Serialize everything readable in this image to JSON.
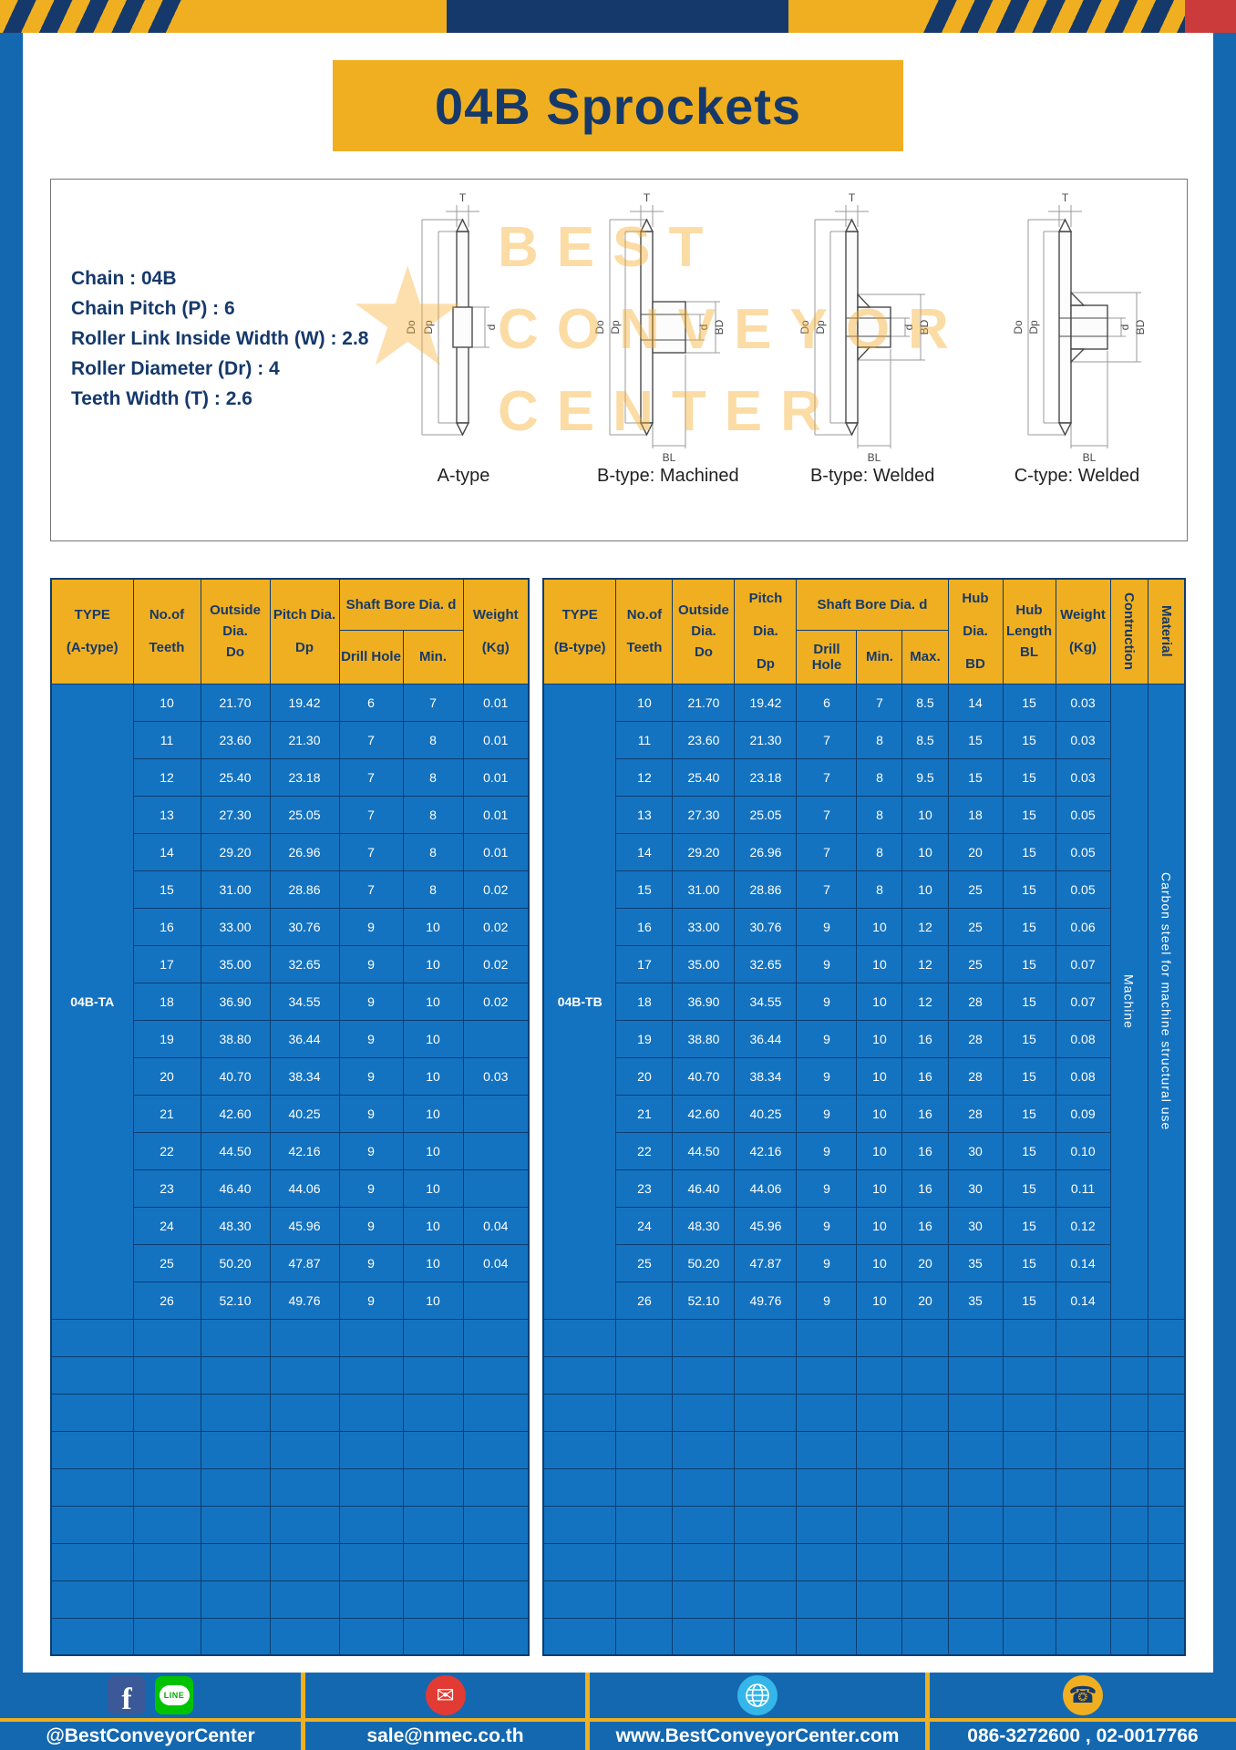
{
  "page": {
    "title": "04B Sprockets"
  },
  "specs": {
    "lines": [
      "Chain  :  04B",
      "Chain Pitch (P)  :  6",
      "Roller Link Inside Width (W)  :  2.8",
      "Roller Diameter (Dr)  :  4",
      "Teeth Width (T)  :  2.6"
    ]
  },
  "watermark": {
    "star": "★",
    "lines": [
      "BEST",
      "CONVEYOR",
      "CENTER"
    ]
  },
  "diagrams": {
    "labels": [
      "A-type",
      "B-type: Machined",
      "B-type: Welded",
      "C-type: Welded"
    ]
  },
  "dims": {
    "T": "T",
    "Do": "Do",
    "Dp": "Dp",
    "d": "d",
    "BD": "BD",
    "BL": "BL"
  },
  "tableA": {
    "headers": {
      "type": "TYPE\n(A-type)",
      "teeth": "No.of\nTeeth",
      "outside": "Outside\nDia.\nDo",
      "pitch": "Pitch Dia.\nDp",
      "shaft": "Shaft Bore Dia. d",
      "drill": "Drill Hole",
      "min": "Min.",
      "weight": "Weight\n(Kg)"
    },
    "type_value": "04B-TA",
    "rows": [
      [
        "10",
        "21.70",
        "19.42",
        "6",
        "7",
        "0.01"
      ],
      [
        "11",
        "23.60",
        "21.30",
        "7",
        "8",
        "0.01"
      ],
      [
        "12",
        "25.40",
        "23.18",
        "7",
        "8",
        "0.01"
      ],
      [
        "13",
        "27.30",
        "25.05",
        "7",
        "8",
        "0.01"
      ],
      [
        "14",
        "29.20",
        "26.96",
        "7",
        "8",
        "0.01"
      ],
      [
        "15",
        "31.00",
        "28.86",
        "7",
        "8",
        "0.02"
      ],
      [
        "16",
        "33.00",
        "30.76",
        "9",
        "10",
        "0.02"
      ],
      [
        "17",
        "35.00",
        "32.65",
        "9",
        "10",
        "0.02"
      ],
      [
        "18",
        "36.90",
        "34.55",
        "9",
        "10",
        "0.02"
      ],
      [
        "19",
        "38.80",
        "36.44",
        "9",
        "10",
        ""
      ],
      [
        "20",
        "40.70",
        "38.34",
        "9",
        "10",
        "0.03"
      ],
      [
        "21",
        "42.60",
        "40.25",
        "9",
        "10",
        ""
      ],
      [
        "22",
        "44.50",
        "42.16",
        "9",
        "10",
        ""
      ],
      [
        "23",
        "46.40",
        "44.06",
        "9",
        "10",
        ""
      ],
      [
        "24",
        "48.30",
        "45.96",
        "9",
        "10",
        "0.04"
      ],
      [
        "25",
        "50.20",
        "47.87",
        "9",
        "10",
        "0.04"
      ],
      [
        "26",
        "52.10",
        "49.76",
        "9",
        "10",
        ""
      ]
    ],
    "empty_row_count": 9
  },
  "tableB": {
    "headers": {
      "type": "TYPE\n(B-type)",
      "teeth": "No.of\nTeeth",
      "outside": "Outside\nDia.\nDo",
      "pitch": "Pitch Dia.\nDp",
      "shaft": "Shaft Bore Dia. d",
      "drill": "Drill Hole",
      "min": "Min.",
      "max": "Max.",
      "hub_dia": "Hub Dia.\nBD",
      "hub_len": "Hub\nLength\nBL",
      "weight": "Weight\n(Kg)",
      "construction": "Contruction",
      "material": "Material"
    },
    "type_value": "04B-TB",
    "construction_value": "Machine",
    "material_value": "Carbon steel for machine structural use",
    "rows": [
      [
        "10",
        "21.70",
        "19.42",
        "6",
        "7",
        "8.5",
        "14",
        "15",
        "0.03"
      ],
      [
        "11",
        "23.60",
        "21.30",
        "7",
        "8",
        "8.5",
        "15",
        "15",
        "0.03"
      ],
      [
        "12",
        "25.40",
        "23.18",
        "7",
        "8",
        "9.5",
        "15",
        "15",
        "0.03"
      ],
      [
        "13",
        "27.30",
        "25.05",
        "7",
        "8",
        "10",
        "18",
        "15",
        "0.05"
      ],
      [
        "14",
        "29.20",
        "26.96",
        "7",
        "8",
        "10",
        "20",
        "15",
        "0.05"
      ],
      [
        "15",
        "31.00",
        "28.86",
        "7",
        "8",
        "10",
        "25",
        "15",
        "0.05"
      ],
      [
        "16",
        "33.00",
        "30.76",
        "9",
        "10",
        "12",
        "25",
        "15",
        "0.06"
      ],
      [
        "17",
        "35.00",
        "32.65",
        "9",
        "10",
        "12",
        "25",
        "15",
        "0.07"
      ],
      [
        "18",
        "36.90",
        "34.55",
        "9",
        "10",
        "12",
        "28",
        "15",
        "0.07"
      ],
      [
        "19",
        "38.80",
        "36.44",
        "9",
        "10",
        "16",
        "28",
        "15",
        "0.08"
      ],
      [
        "20",
        "40.70",
        "38.34",
        "9",
        "10",
        "16",
        "28",
        "15",
        "0.08"
      ],
      [
        "21",
        "42.60",
        "40.25",
        "9",
        "10",
        "16",
        "28",
        "15",
        "0.09"
      ],
      [
        "22",
        "44.50",
        "42.16",
        "9",
        "10",
        "16",
        "30",
        "15",
        "0.10"
      ],
      [
        "23",
        "46.40",
        "44.06",
        "9",
        "10",
        "16",
        "30",
        "15",
        "0.11"
      ],
      [
        "24",
        "48.30",
        "45.96",
        "9",
        "10",
        "16",
        "30",
        "15",
        "0.12"
      ],
      [
        "25",
        "50.20",
        "47.87",
        "9",
        "10",
        "20",
        "35",
        "15",
        "0.14"
      ],
      [
        "26",
        "52.10",
        "49.76",
        "9",
        "10",
        "20",
        "35",
        "15",
        "0.14"
      ]
    ],
    "empty_row_count": 9
  },
  "footer": {
    "sections": [
      {
        "text": "@BestConveyorCenter"
      },
      {
        "text": "sale@nmec.co.th"
      },
      {
        "text": "www.BestConveyorCenter.com"
      },
      {
        "text": "086-3272600 , 02-0017766"
      }
    ],
    "glyphs": {
      "facebook": "f",
      "line": "LINE",
      "email": "✉",
      "phone": "☎"
    }
  },
  "colors": {
    "gold": "#EFAF20",
    "navy": "#16396B",
    "table_blue": "#1473C0",
    "frame_blue": "#1468B0",
    "corner_red": "#CC3B3B"
  }
}
